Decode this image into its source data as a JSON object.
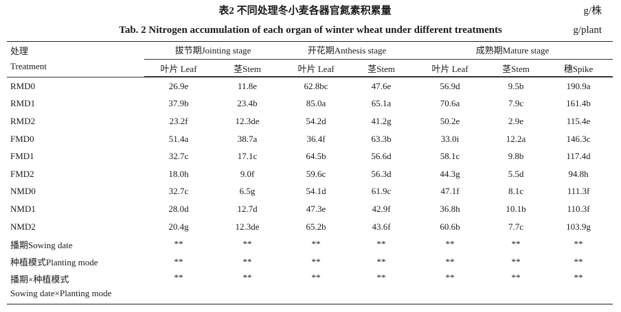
{
  "title": {
    "cn": "表2   不同处理冬小麦各器官氮素积累量",
    "en": "Tab. 2   Nitrogen accumulation of each organ of winter wheat under different treatments",
    "unit_cn": "g/株",
    "unit_en": "g/plant"
  },
  "header": {
    "treatment_cn": "处理",
    "treatment_en": "Treatment",
    "stages": [
      {
        "label": "拔节期Jointing stage",
        "cols": [
          "叶片 Leaf",
          "茎Stem"
        ]
      },
      {
        "label": "开花期Anthesis stage",
        "cols": [
          "叶片 Leaf",
          "茎Stem"
        ]
      },
      {
        "label": "成熟期Mature stage",
        "cols": [
          "叶片 Leaf",
          "茎Stem",
          "穗Spike"
        ]
      }
    ]
  },
  "rows": [
    {
      "name": "RMD0",
      "values": [
        "26.9e",
        "11.8e",
        "62.8bc",
        "47.6e",
        "56.9d",
        "9.5b",
        "190.9a"
      ]
    },
    {
      "name": "RMD1",
      "values": [
        "37.9b",
        "23.4b",
        "85.0a",
        "65.1a",
        "70.6a",
        "7.9c",
        "161.4b"
      ]
    },
    {
      "name": "RMD2",
      "values": [
        "23.2f",
        "12.3de",
        "54.2d",
        "41.2g",
        "50.2e",
        "2.9e",
        "115.4e"
      ]
    },
    {
      "name": "FMD0",
      "values": [
        "51.4a",
        "38.7a",
        "36.4f",
        "63.3b",
        "33.0i",
        "12.2a",
        "146.3c"
      ]
    },
    {
      "name": "FMD1",
      "values": [
        "32.7c",
        "17.1c",
        "64.5b",
        "56.6d",
        "58.1c",
        "9.8b",
        "117.4d"
      ]
    },
    {
      "name": "FMD2",
      "values": [
        "18.0h",
        "9.0f",
        "59.6c",
        "56.3d",
        "44.3g",
        "5.5d",
        "94.8h"
      ]
    },
    {
      "name": "NMD0",
      "values": [
        "32.7c",
        "6.5g",
        "54.1d",
        "61.9c",
        "47.1f",
        "8.1c",
        "111.3f"
      ]
    },
    {
      "name": "NMD1",
      "values": [
        "28.0d",
        "12.7d",
        "47.3e",
        "42.9f",
        "36.8h",
        "10.1b",
        "110.3f"
      ]
    },
    {
      "name": "NMD2",
      "values": [
        "20.4g",
        "12.3de",
        "65.2b",
        "43.6f",
        "60.6b",
        "7.7c",
        "103.9g"
      ]
    },
    {
      "name": "播期Sowing date",
      "values": [
        "**",
        "**",
        "**",
        "**",
        "**",
        "**",
        "**"
      ]
    },
    {
      "name": "种植模式Planting mode",
      "values": [
        "**",
        "**",
        "**",
        "**",
        "**",
        "**",
        "**"
      ]
    }
  ],
  "interaction_row": {
    "name_cn": "播期×种植模式",
    "name_en": "Sowing date×Planting mode",
    "values": [
      "**",
      "**",
      "**",
      "**",
      "**",
      "**",
      "**"
    ]
  }
}
